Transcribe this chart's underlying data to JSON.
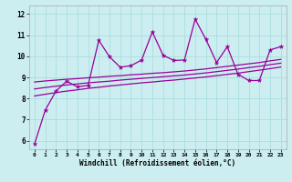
{
  "xlabel": "Windchill (Refroidissement éolien,°C)",
  "bg_color": "#cceef0",
  "grid_color": "#aadddf",
  "line_color": "#990099",
  "xlim": [
    -0.5,
    23.5
  ],
  "ylim": [
    5.6,
    12.4
  ],
  "x_ticks": [
    0,
    1,
    2,
    3,
    4,
    5,
    6,
    7,
    8,
    9,
    10,
    11,
    12,
    13,
    14,
    15,
    16,
    17,
    18,
    19,
    20,
    21,
    22,
    23
  ],
  "y_ticks": [
    6,
    7,
    8,
    9,
    10,
    11,
    12
  ],
  "main_x": [
    0,
    1,
    2,
    3,
    4,
    5,
    6,
    7,
    8,
    9,
    10,
    11,
    12,
    13,
    14,
    15,
    16,
    17,
    18,
    19,
    20,
    21,
    22,
    23
  ],
  "main_y": [
    5.85,
    7.45,
    8.35,
    8.82,
    8.55,
    8.62,
    10.75,
    9.97,
    9.48,
    9.55,
    9.82,
    11.15,
    10.05,
    9.8,
    9.82,
    11.75,
    10.8,
    9.7,
    10.45,
    9.15,
    8.85,
    8.85,
    10.3,
    10.45
  ],
  "line1_y": [
    8.78,
    8.83,
    8.87,
    8.91,
    8.94,
    8.98,
    9.01,
    9.05,
    9.08,
    9.12,
    9.15,
    9.19,
    9.22,
    9.26,
    9.3,
    9.35,
    9.4,
    9.46,
    9.52,
    9.58,
    9.64,
    9.7,
    9.78,
    9.85
  ],
  "line2_y": [
    8.45,
    8.52,
    8.58,
    8.64,
    8.69,
    8.74,
    8.78,
    8.82,
    8.87,
    8.91,
    8.95,
    8.99,
    9.03,
    9.07,
    9.11,
    9.16,
    9.21,
    9.27,
    9.33,
    9.39,
    9.46,
    9.52,
    9.6,
    9.67
  ],
  "line3_y": [
    8.12,
    8.2,
    8.28,
    8.35,
    8.41,
    8.48,
    8.53,
    8.59,
    8.64,
    8.69,
    8.74,
    8.78,
    8.83,
    8.87,
    8.92,
    8.97,
    9.02,
    9.08,
    9.14,
    9.2,
    9.27,
    9.34,
    9.41,
    9.49
  ]
}
